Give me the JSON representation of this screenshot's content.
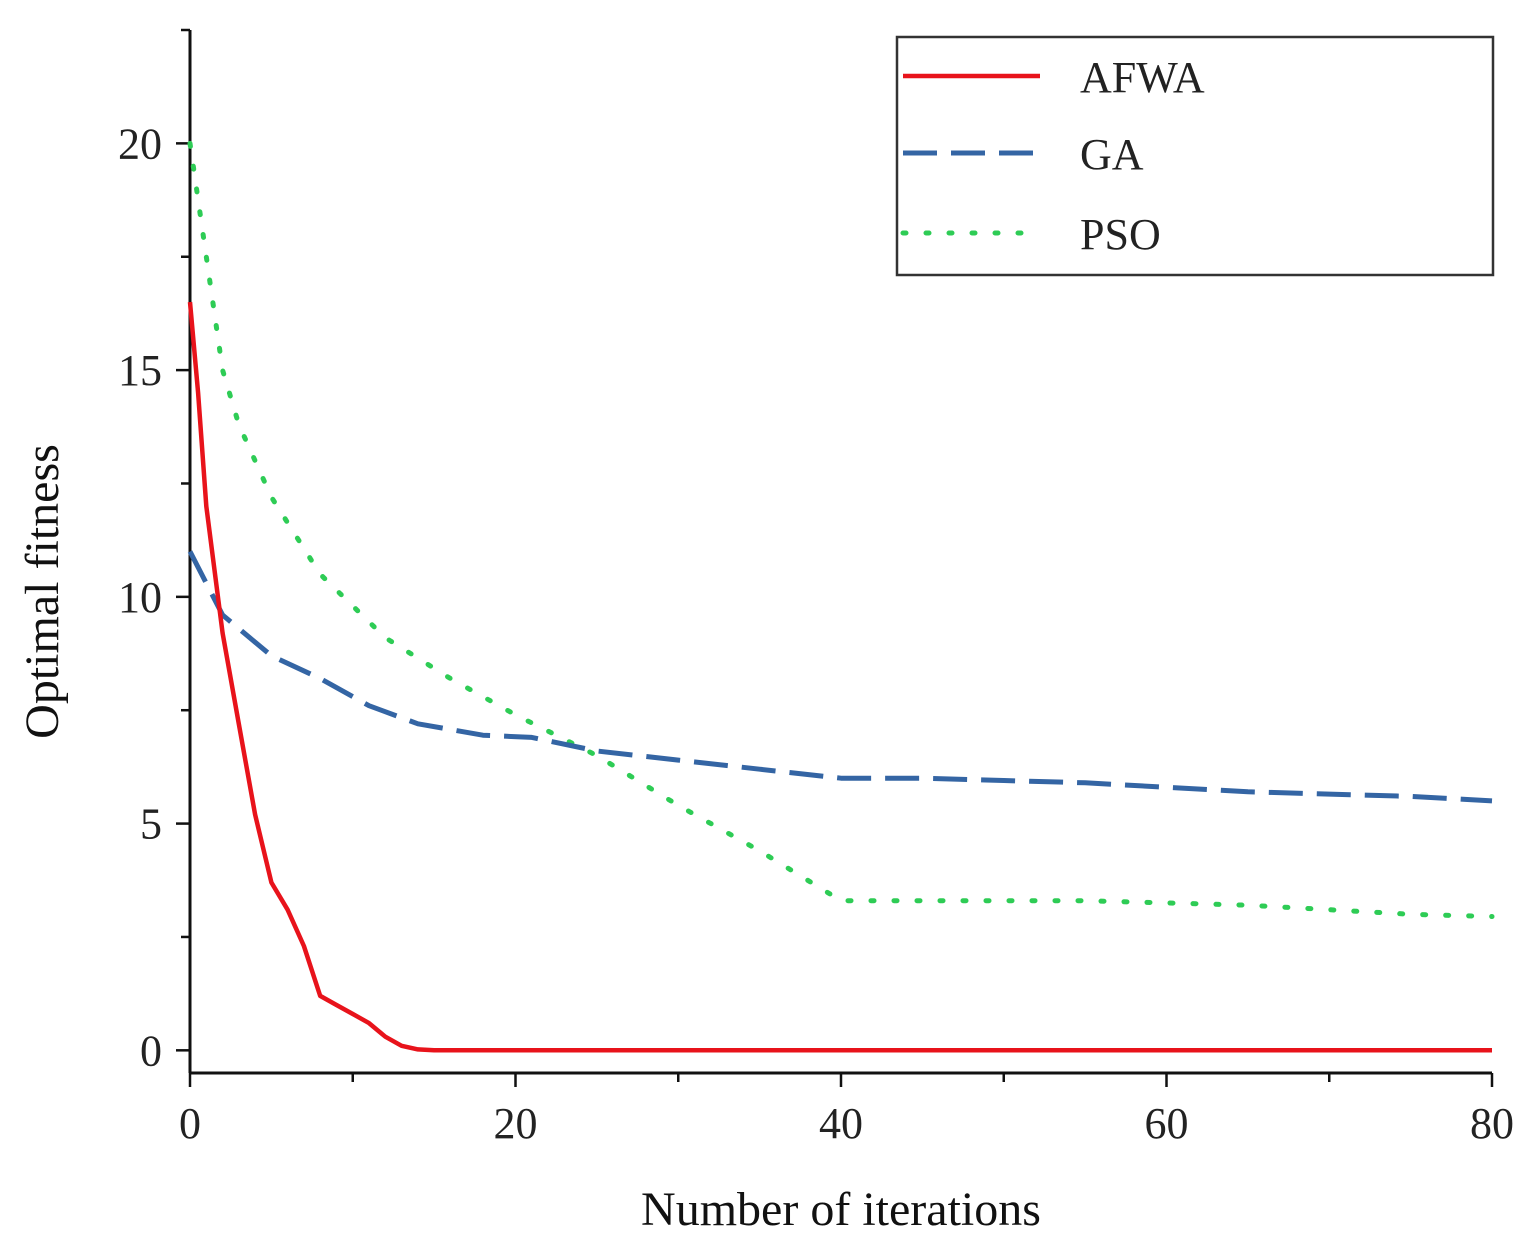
{
  "chart_data": {
    "type": "line",
    "title": "",
    "xlabel": "Number of iterations",
    "ylabel": "Optimal fitness",
    "xlim": [
      0,
      80
    ],
    "ylim": [
      -0.5,
      22.5
    ],
    "x_ticks": [
      0,
      20,
      40,
      60,
      80
    ],
    "x_tick_labels": [
      "0",
      "20",
      "40",
      "60",
      "80"
    ],
    "y_ticks": [
      0,
      5,
      10,
      15,
      20
    ],
    "y_tick_labels": [
      "0",
      "5",
      "10",
      "15",
      "20"
    ],
    "grid": false,
    "legend_position": "top-right",
    "series": [
      {
        "name": "AFWA",
        "color": "#e8131b",
        "style": "solid",
        "x": [
          0,
          0.5,
          1,
          2,
          3,
          4,
          5,
          6,
          7,
          8,
          9,
          10,
          11,
          12,
          13,
          14,
          15,
          20,
          40,
          60,
          80
        ],
        "y": [
          16.5,
          14.5,
          12.0,
          9.2,
          7.2,
          5.2,
          3.7,
          3.1,
          2.3,
          1.2,
          1.0,
          0.8,
          0.6,
          0.3,
          0.1,
          0.02,
          0.0,
          0.0,
          0.0,
          0.0,
          0.0
        ]
      },
      {
        "name": "GA",
        "color": "#3465a4",
        "style": "dashed",
        "x": [
          0,
          2,
          5,
          8,
          11,
          14,
          18,
          21,
          25,
          30,
          35,
          40,
          45,
          50,
          55,
          60,
          65,
          70,
          75,
          80
        ],
        "y": [
          11.0,
          9.6,
          8.7,
          8.2,
          7.6,
          7.2,
          6.95,
          6.9,
          6.6,
          6.4,
          6.2,
          6.0,
          6.0,
          5.95,
          5.9,
          5.8,
          5.7,
          5.65,
          5.6,
          5.5
        ]
      },
      {
        "name": "PSO",
        "color": "#2ecc55",
        "style": "dotted",
        "x": [
          0,
          1,
          2,
          3,
          5,
          8,
          12,
          16,
          20,
          25,
          30,
          35,
          40,
          45,
          50,
          55,
          60,
          65,
          70,
          75,
          80
        ],
        "y": [
          20.0,
          17.5,
          15.0,
          13.8,
          12.2,
          10.5,
          9.1,
          8.2,
          7.4,
          6.5,
          5.4,
          4.4,
          3.3,
          3.3,
          3.3,
          3.3,
          3.25,
          3.2,
          3.1,
          3.0,
          2.95
        ]
      }
    ]
  }
}
